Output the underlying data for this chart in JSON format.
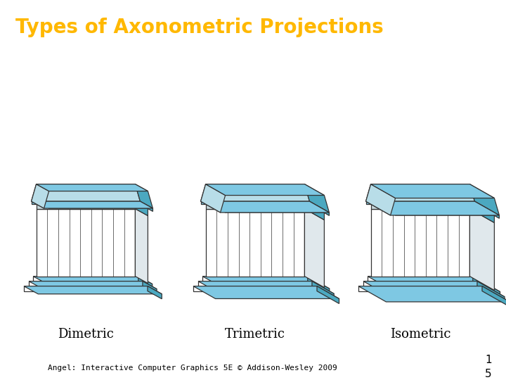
{
  "title": "Types of Axonometric Projections",
  "title_color": "#FFB800",
  "title_bg": "#000000",
  "bg_color": "#FFFFFF",
  "labels": [
    "Dimetric",
    "Trimetric",
    "Isometric"
  ],
  "footer_text": "Angel: Interactive Computer Graphics 5E © Addison-Wesley 2009",
  "roof_top_color": "#7EC8E3",
  "roof_slope_front": "#B8DDE8",
  "roof_slope_side": "#4BA8C0",
  "entab_front": "#C8D8DC",
  "entab_side": "#4BA8C0",
  "entab_top": "#7EC8E3",
  "base_top": "#7EC8E3",
  "base_side": "#4BA8C0",
  "base_front": "#FFFFFF",
  "col_bg": "#FFFFFF",
  "col_side": "#E0E8EC",
  "line_color": "#333333",
  "lw": 0.9
}
